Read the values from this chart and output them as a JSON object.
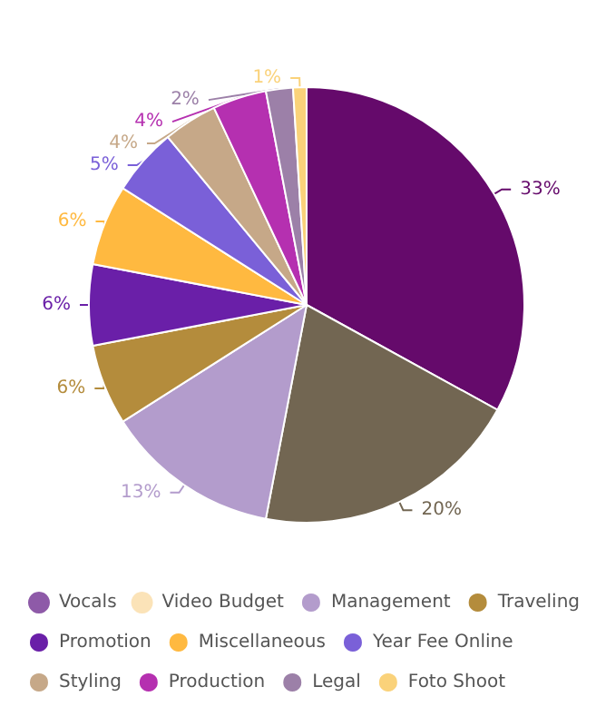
{
  "chart_data": {
    "type": "pie",
    "categories": [
      null,
      null,
      "Vocals",
      "Video Budget",
      "Management",
      "Traveling",
      "Promotion",
      "Miscellaneous",
      "Year Fee Online",
      "Styling",
      "Production",
      "Legal",
      "Foto Shoot"
    ],
    "values": [
      33,
      20,
      0,
      0,
      13,
      6,
      6,
      6,
      5,
      4,
      4,
      2,
      1
    ],
    "value_labels": [
      "33%",
      "20%",
      null,
      null,
      "13%",
      "6%",
      "6%",
      "6%",
      "5%",
      "4%",
      "4%",
      "2%",
      "1%"
    ],
    "colors": [
      "#650a6b",
      "#726652",
      "#8e5aa8",
      "#fbe3b8",
      "#b39ccc",
      "#b48c3c",
      "#6a1fa8",
      "#ffb940",
      "#7a60d8",
      "#c6a888",
      "#b530b0",
      "#9c80a8",
      "#fad27a"
    ],
    "legend": "bottom"
  }
}
